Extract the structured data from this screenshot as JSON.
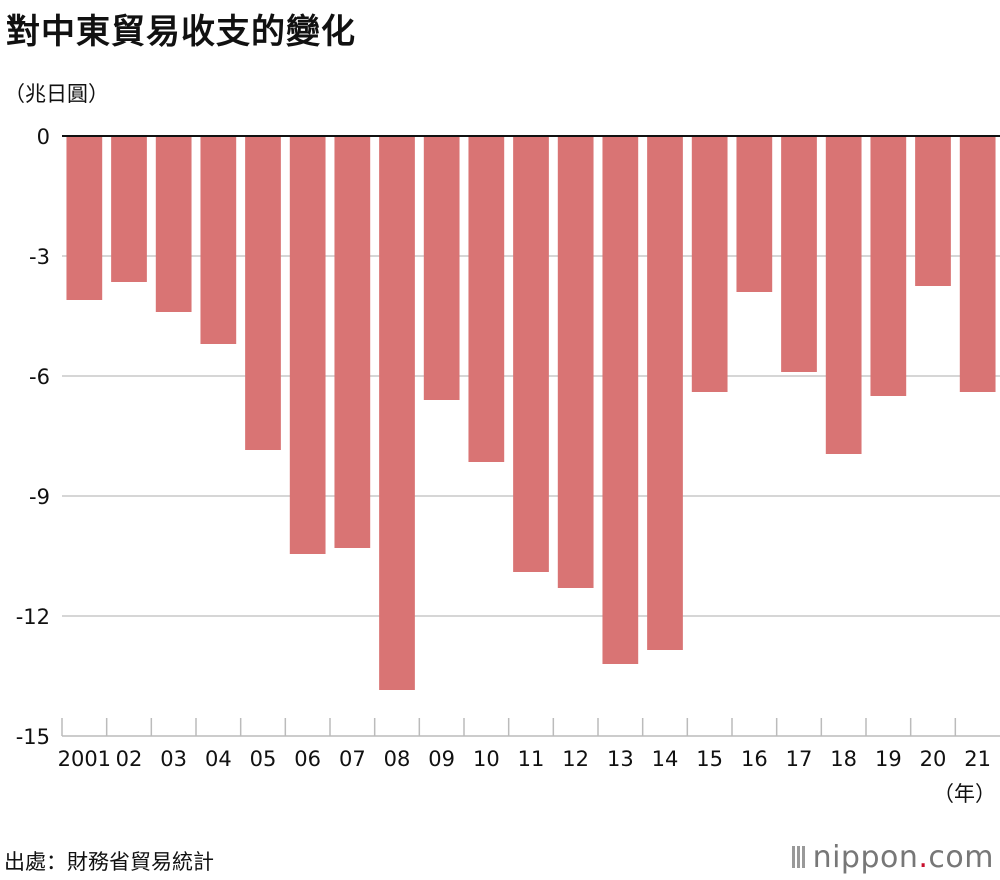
{
  "title": "對中東貿易收支的變化",
  "unit_label": "（兆日圓）",
  "x_unit_label": "（年）",
  "source": "出處：財務省貿易統計",
  "logo": {
    "text_main": "nippon",
    "text_dot": ".",
    "text_tld": "com"
  },
  "chart_data": {
    "type": "bar",
    "title": "對中東貿易收支的變化",
    "ylabel": "（兆日圓）",
    "xlabel": "（年）",
    "ylim": [
      -15,
      0
    ],
    "yticks": [
      0,
      -3,
      -6,
      -9,
      -12,
      -15
    ],
    "ytick_labels": [
      "0",
      "-3",
      "-6",
      "-9",
      "-12",
      "-15"
    ],
    "grid": true,
    "bar_color": "#d97474",
    "categories": [
      "2001",
      "02",
      "03",
      "04",
      "05",
      "06",
      "07",
      "08",
      "09",
      "10",
      "11",
      "12",
      "13",
      "14",
      "15",
      "16",
      "17",
      "18",
      "19",
      "20",
      "21"
    ],
    "values": [
      -4.1,
      -3.65,
      -4.4,
      -5.2,
      -7.85,
      -10.45,
      -10.3,
      -13.85,
      -6.6,
      -8.15,
      -10.9,
      -11.3,
      -13.2,
      -12.85,
      -6.4,
      -3.9,
      -5.9,
      -7.95,
      -6.5,
      -3.75,
      -6.4
    ]
  }
}
